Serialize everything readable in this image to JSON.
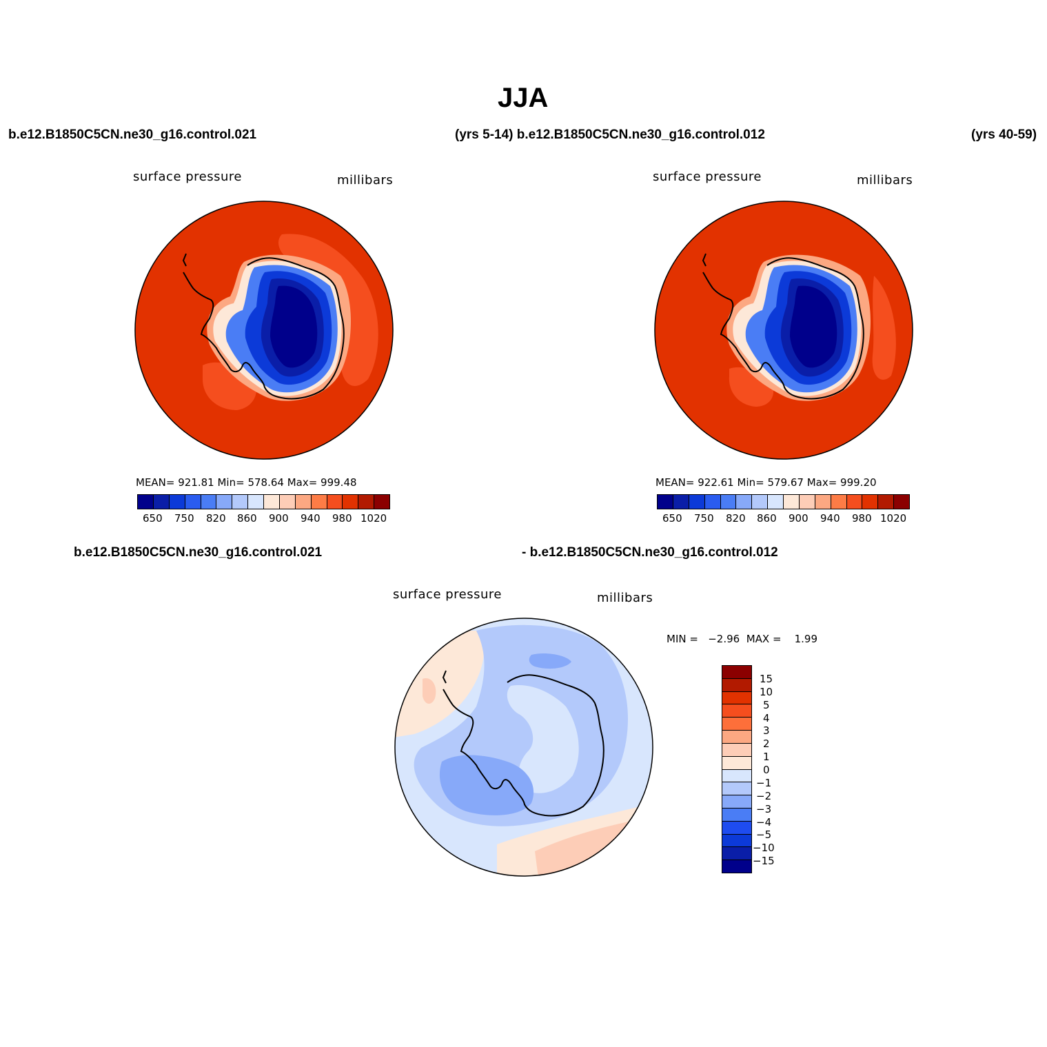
{
  "page": {
    "title": "JJA",
    "case_left": "b.e12.B1850C5CN.ne30_g16.control.021",
    "case_mid": "(yrs 5-14) b.e12.B1850C5CN.ne30_g16.control.012",
    "case_right": "(yrs 40-59)",
    "diff_left": "b.e12.B1850C5CN.ne30_g16.control.021",
    "diff_right": "- b.e12.B1850C5CN.ne30_g16.control.012"
  },
  "panels": {
    "p1": {
      "variable": "surface pressure",
      "units": "millibars",
      "stats": "MEAN=  921.81    Min=  578.64    Max=  999.48"
    },
    "p2": {
      "variable": "surface pressure",
      "units": "millibars",
      "stats": "MEAN=  922.61    Min=  579.67    Max=  999.20"
    },
    "p3": {
      "variable": "surface pressure",
      "units": "millibars",
      "stats": "MIN =   −2.96  MAX =    1.99"
    }
  },
  "colorbars": {
    "main": {
      "colors": [
        "#00008b",
        "#0a1ea8",
        "#0c3ad8",
        "#2a5cf0",
        "#4a7df5",
        "#87a9f9",
        "#b3c9fb",
        "#d8e6fd",
        "#fde8d8",
        "#fdcdb7",
        "#fca882",
        "#fd7c46",
        "#f54e1e",
        "#e23200",
        "#b21a00",
        "#8b0000"
      ],
      "labels": [
        "650",
        "750",
        "820",
        "860",
        "900",
        "940",
        "980",
        "1020"
      ]
    },
    "diff": {
      "colors": [
        "#8b0000",
        "#b21a00",
        "#e23200",
        "#f54e1e",
        "#fd6f3a",
        "#fca882",
        "#fdcdb7",
        "#fde8d8",
        "#d8e6fd",
        "#b3c9fb",
        "#87a9f9",
        "#4a7df5",
        "#1e4cf0",
        "#0c3ad8",
        "#0a1ea8",
        "#00008b"
      ],
      "labels": [
        "15",
        "10",
        "5",
        "4",
        "3",
        "2",
        "1",
        "0",
        "−1",
        "−2",
        "−3",
        "−4",
        "−5",
        "−10",
        "−15"
      ]
    }
  },
  "map_colors": {
    "ocean_high": "#e23200",
    "ocean_mid": "#f54e1e",
    "ring_pale": "#fca882",
    "ring_light": "#fde8d8",
    "ice_blue1": "#4a7df5",
    "ice_blue2": "#0c3ad8",
    "ice_blue3": "#0a1ea8",
    "ice_core": "#00008b",
    "diff_bg": "#d8e6fd",
    "diff_neg1": "#b3c9fb",
    "diff_neg2": "#87a9f9",
    "diff_pos1": "#fde8d8",
    "diff_pos2": "#fdcdb7"
  }
}
